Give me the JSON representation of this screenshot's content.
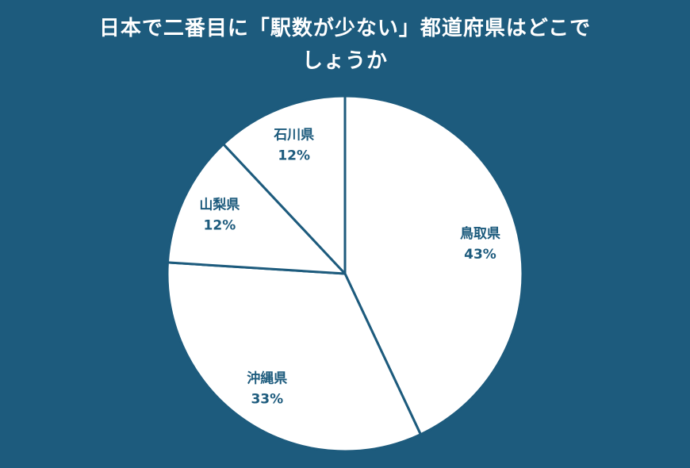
{
  "title": {
    "line1": "日本で二番目に「駅数が少ない」都道府県はどこで",
    "line2": "しょうか"
  },
  "colors": {
    "background": "#1d5b7d",
    "title_text": "#ffffff",
    "slice_fill": "#ffffff",
    "slice_stroke": "#1d5b7d",
    "label_text": "#1d5b7d"
  },
  "chart_data": {
    "type": "pie",
    "title": "日本で二番目に「駅数が少ない」都道府県はどこでしょうか",
    "categories": [
      "鳥取県",
      "沖縄県",
      "山梨県",
      "石川県"
    ],
    "values": [
      43,
      33,
      12,
      12
    ],
    "value_labels": [
      "43%",
      "33%",
      "12%",
      "12%"
    ],
    "start_angle_deg": 0,
    "direction": "clockwise",
    "labels_position": "inside",
    "legend": "none",
    "slice_fill": "#ffffff",
    "slice_stroke": "#1d5b7d",
    "label_color": "#1d5b7d"
  }
}
